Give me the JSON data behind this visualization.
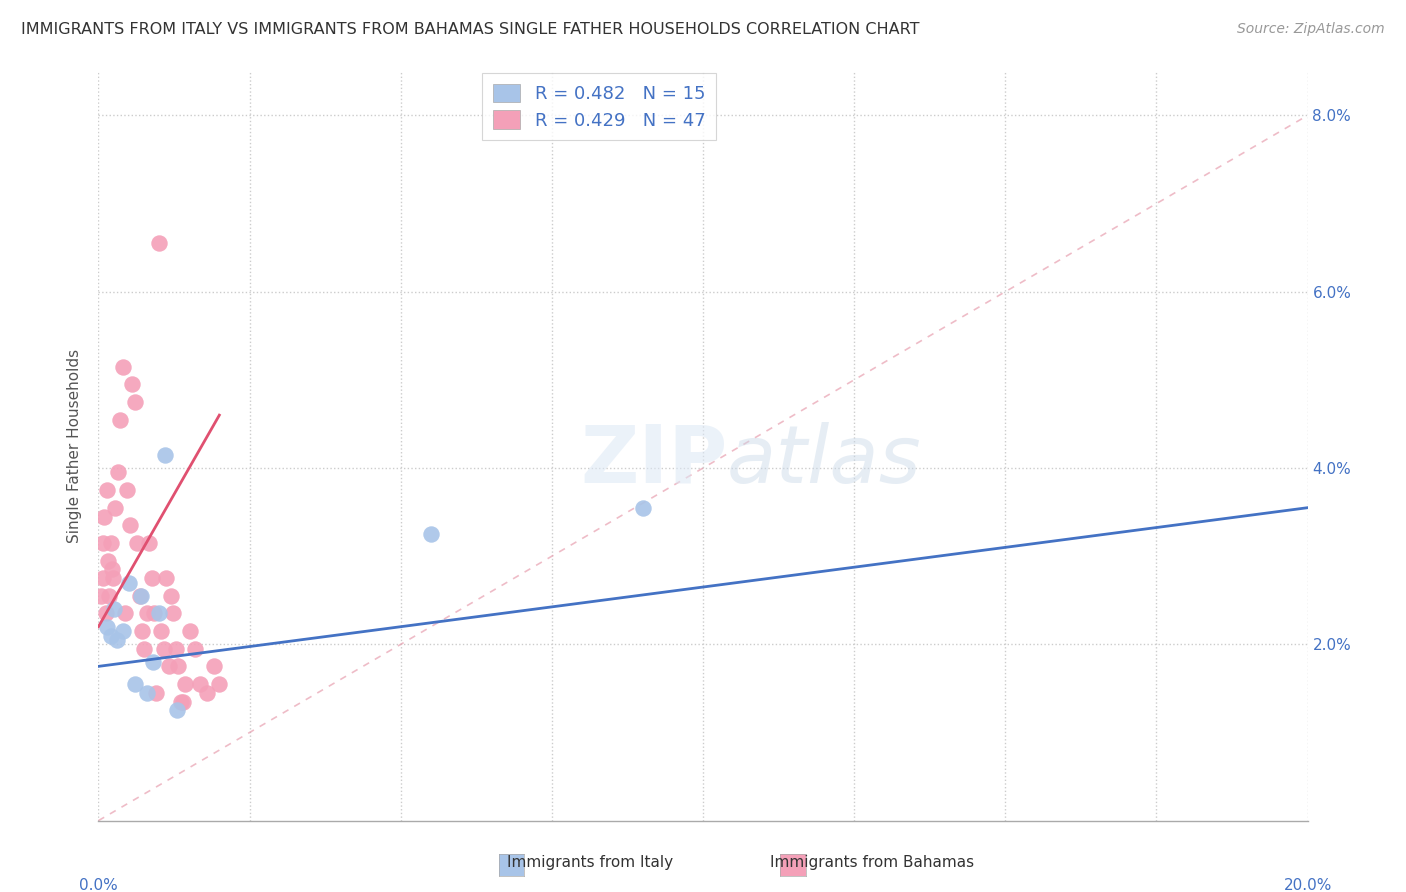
{
  "title": "IMMIGRANTS FROM ITALY VS IMMIGRANTS FROM BAHAMAS SINGLE FATHER HOUSEHOLDS CORRELATION CHART",
  "source": "Source: ZipAtlas.com",
  "ylabel": "Single Father Households",
  "legend_italy_r": "R = 0.482",
  "legend_italy_n": "N = 15",
  "legend_bahamas_r": "R = 0.429",
  "legend_bahamas_n": "N = 47",
  "italy_color": "#a8c4e8",
  "bahamas_color": "#f4a0b8",
  "italy_line_color": "#4472c4",
  "bahamas_line_color": "#e05070",
  "diagonal_color": "#f0b0c0",
  "italy_scatter": [
    [
      0.15,
      2.2
    ],
    [
      0.2,
      2.1
    ],
    [
      0.25,
      2.4
    ],
    [
      0.3,
      2.05
    ],
    [
      0.4,
      2.15
    ],
    [
      0.5,
      2.7
    ],
    [
      0.6,
      1.55
    ],
    [
      0.7,
      2.55
    ],
    [
      0.8,
      1.45
    ],
    [
      0.9,
      1.8
    ],
    [
      1.0,
      2.35
    ],
    [
      1.1,
      4.15
    ],
    [
      1.3,
      1.25
    ],
    [
      5.5,
      3.25
    ],
    [
      9.0,
      3.55
    ]
  ],
  "bahamas_scatter": [
    [
      0.05,
      2.55
    ],
    [
      0.07,
      2.75
    ],
    [
      0.08,
      3.15
    ],
    [
      0.1,
      3.45
    ],
    [
      0.12,
      2.35
    ],
    [
      0.14,
      3.75
    ],
    [
      0.16,
      2.95
    ],
    [
      0.18,
      2.55
    ],
    [
      0.2,
      3.15
    ],
    [
      0.22,
      2.85
    ],
    [
      0.24,
      2.75
    ],
    [
      0.28,
      3.55
    ],
    [
      0.32,
      3.95
    ],
    [
      0.36,
      4.55
    ],
    [
      0.4,
      5.15
    ],
    [
      0.44,
      2.35
    ],
    [
      0.48,
      3.75
    ],
    [
      0.52,
      3.35
    ],
    [
      0.56,
      4.95
    ],
    [
      0.6,
      4.75
    ],
    [
      0.64,
      3.15
    ],
    [
      0.68,
      2.55
    ],
    [
      0.72,
      2.15
    ],
    [
      0.76,
      1.95
    ],
    [
      0.8,
      2.35
    ],
    [
      0.84,
      3.15
    ],
    [
      0.88,
      2.75
    ],
    [
      0.92,
      2.35
    ],
    [
      0.96,
      1.45
    ],
    [
      1.0,
      6.55
    ],
    [
      1.04,
      2.15
    ],
    [
      1.08,
      1.95
    ],
    [
      1.12,
      2.75
    ],
    [
      1.16,
      1.75
    ],
    [
      1.2,
      2.55
    ],
    [
      1.24,
      2.35
    ],
    [
      1.28,
      1.95
    ],
    [
      1.32,
      1.75
    ],
    [
      1.36,
      1.35
    ],
    [
      1.4,
      1.35
    ],
    [
      1.44,
      1.55
    ],
    [
      1.52,
      2.15
    ],
    [
      1.6,
      1.95
    ],
    [
      1.68,
      1.55
    ],
    [
      1.8,
      1.45
    ],
    [
      1.92,
      1.75
    ],
    [
      2.0,
      1.55
    ]
  ],
  "italy_line": {
    "x0": 0,
    "y0": 1.75,
    "x1": 20,
    "y1": 3.55
  },
  "bahamas_line": {
    "x0": 0,
    "y0": 2.2,
    "x1": 2.0,
    "y1": 4.6
  },
  "xlim": [
    0,
    20
  ],
  "ylim": [
    0,
    8.5
  ],
  "yticks": [
    0,
    2,
    4,
    6,
    8
  ],
  "ytick_labels": [
    "",
    "2.0%",
    "4.0%",
    "6.0%",
    "8.0%"
  ],
  "xtick_labels_show": [
    "0.0%",
    "20.0%"
  ]
}
